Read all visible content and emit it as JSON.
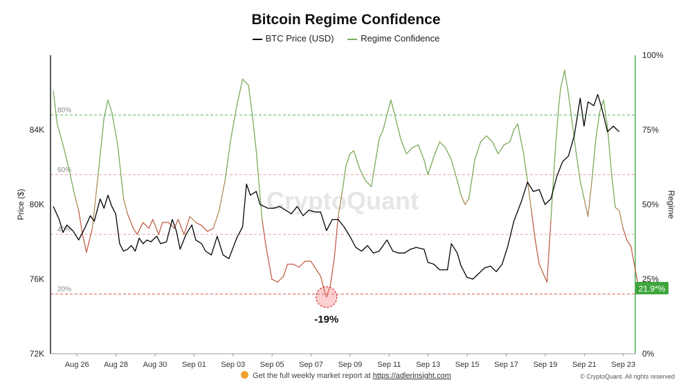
{
  "chart_data": {
    "type": "line",
    "title": "Bitcoin Regime Confidence",
    "ylabel_left": "Price ($)",
    "ylabel_right": "Regime",
    "ylim_left": [
      72000,
      88000
    ],
    "ylim_right": [
      0,
      100
    ],
    "left_ticks": [
      "72K",
      "76K",
      "80K",
      "84K"
    ],
    "right_ticks": [
      "0%",
      "25%",
      "50%",
      "75%",
      "100%"
    ],
    "x_ticks": [
      "Aug 26",
      "Aug 28",
      "Aug 30",
      "Sep 01",
      "Sep 03",
      "Sep 05",
      "Sep 07",
      "Sep 09",
      "Sep 11",
      "Sep 13",
      "Sep 15",
      "Sep 17",
      "Sep 19",
      "Sep 21",
      "Sep 23"
    ],
    "xlim_days": [
      "Aug 25",
      "Sep 25"
    ],
    "reference_lines": [
      {
        "label": "80%",
        "value": 80,
        "color": "#5cb85c"
      },
      {
        "label": "60%",
        "value": 60,
        "color": "#e8a0a0"
      },
      {
        "label": "40%",
        "value": 40,
        "color": "#e8a0a0"
      },
      {
        "label": "20%",
        "value": 20,
        "color": "#e05050"
      }
    ],
    "series": [
      {
        "name": "BTC Price (USD)",
        "color": "#000000",
        "axis": "left",
        "points": [
          [
            0.0,
            79900
          ],
          [
            0.3,
            79200
          ],
          [
            0.5,
            78500
          ],
          [
            0.7,
            78900
          ],
          [
            1.0,
            78600
          ],
          [
            1.3,
            78100
          ],
          [
            1.6,
            78700
          ],
          [
            1.9,
            79400
          ],
          [
            2.1,
            79100
          ],
          [
            2.4,
            80300
          ],
          [
            2.6,
            79800
          ],
          [
            2.8,
            80500
          ],
          [
            3.0,
            79900
          ],
          [
            3.2,
            79500
          ],
          [
            3.4,
            77900
          ],
          [
            3.6,
            77500
          ],
          [
            3.8,
            77600
          ],
          [
            4.0,
            77800
          ],
          [
            4.2,
            77500
          ],
          [
            4.4,
            78200
          ],
          [
            4.6,
            77900
          ],
          [
            4.8,
            78100
          ],
          [
            5.0,
            78000
          ],
          [
            5.3,
            78300
          ],
          [
            5.5,
            77900
          ],
          [
            5.8,
            78000
          ],
          [
            6.1,
            79200
          ],
          [
            6.3,
            78600
          ],
          [
            6.5,
            77600
          ],
          [
            6.8,
            78400
          ],
          [
            7.1,
            78900
          ],
          [
            7.3,
            78100
          ],
          [
            7.6,
            77900
          ],
          [
            7.8,
            77500
          ],
          [
            8.1,
            77300
          ],
          [
            8.4,
            78300
          ],
          [
            8.7,
            77300
          ],
          [
            9.0,
            77100
          ],
          [
            9.4,
            78200
          ],
          [
            9.7,
            78800
          ],
          [
            9.9,
            81100
          ],
          [
            10.1,
            80500
          ],
          [
            10.4,
            80700
          ],
          [
            10.6,
            80000
          ],
          [
            10.8,
            79900
          ],
          [
            11.0,
            79800
          ],
          [
            11.3,
            79800
          ],
          [
            11.6,
            79900
          ],
          [
            11.9,
            79700
          ],
          [
            12.2,
            79500
          ],
          [
            12.5,
            79900
          ],
          [
            12.8,
            79400
          ],
          [
            13.1,
            79700
          ],
          [
            13.4,
            79600
          ],
          [
            13.7,
            79600
          ],
          [
            14.0,
            78600
          ],
          [
            14.3,
            79200
          ],
          [
            14.6,
            79200
          ],
          [
            14.9,
            78800
          ],
          [
            15.2,
            78300
          ],
          [
            15.5,
            77700
          ],
          [
            15.8,
            77500
          ],
          [
            16.1,
            77800
          ],
          [
            16.4,
            77400
          ],
          [
            16.7,
            77500
          ],
          [
            17.1,
            78100
          ],
          [
            17.4,
            77500
          ],
          [
            17.7,
            77400
          ],
          [
            18.0,
            77400
          ],
          [
            18.3,
            77600
          ],
          [
            18.6,
            77700
          ],
          [
            19.0,
            77600
          ],
          [
            19.2,
            76900
          ],
          [
            19.5,
            76800
          ],
          [
            19.8,
            76500
          ],
          [
            20.2,
            76500
          ],
          [
            20.4,
            77900
          ],
          [
            20.7,
            77400
          ],
          [
            20.9,
            76700
          ],
          [
            21.2,
            76100
          ],
          [
            21.5,
            76000
          ],
          [
            21.8,
            76300
          ],
          [
            22.1,
            76600
          ],
          [
            22.4,
            76700
          ],
          [
            22.7,
            76400
          ],
          [
            23.0,
            76800
          ],
          [
            23.3,
            77800
          ],
          [
            23.6,
            79100
          ],
          [
            24.0,
            80200
          ],
          [
            24.3,
            81200
          ],
          [
            24.6,
            80700
          ],
          [
            24.9,
            80800
          ],
          [
            25.2,
            80000
          ],
          [
            25.5,
            80300
          ],
          [
            25.8,
            81500
          ],
          [
            26.1,
            82300
          ],
          [
            26.4,
            82600
          ],
          [
            26.7,
            83700
          ],
          [
            27.0,
            85700
          ],
          [
            27.2,
            84200
          ],
          [
            27.4,
            85500
          ],
          [
            27.7,
            85300
          ],
          [
            27.9,
            85900
          ],
          [
            28.1,
            85200
          ],
          [
            28.4,
            83900
          ],
          [
            28.7,
            84200
          ],
          [
            29.0,
            83900
          ]
        ]
      },
      {
        "name": "Regime Confidence",
        "color": "#7aaa5a",
        "axis": "right",
        "points": [
          [
            0.0,
            88
          ],
          [
            0.2,
            77
          ],
          [
            0.5,
            70
          ],
          [
            0.8,
            62
          ],
          [
            1.1,
            53
          ],
          [
            1.3,
            48
          ],
          [
            1.5,
            40
          ],
          [
            1.7,
            34
          ],
          [
            2.0,
            42
          ],
          [
            2.3,
            60
          ],
          [
            2.6,
            79
          ],
          [
            2.8,
            85
          ],
          [
            3.0,
            81
          ],
          [
            3.3,
            70
          ],
          [
            3.6,
            52
          ],
          [
            3.8,
            47
          ],
          [
            4.1,
            42
          ],
          [
            4.3,
            40
          ],
          [
            4.6,
            44
          ],
          [
            4.9,
            42
          ],
          [
            5.1,
            45
          ],
          [
            5.4,
            40
          ],
          [
            5.6,
            44
          ],
          [
            5.9,
            44
          ],
          [
            6.2,
            42
          ],
          [
            6.4,
            45
          ],
          [
            6.7,
            40
          ],
          [
            7.0,
            46
          ],
          [
            7.3,
            44
          ],
          [
            7.6,
            43
          ],
          [
            7.9,
            41
          ],
          [
            8.2,
            42
          ],
          [
            8.5,
            48
          ],
          [
            8.8,
            58
          ],
          [
            9.1,
            72
          ],
          [
            9.4,
            83
          ],
          [
            9.7,
            92
          ],
          [
            10.0,
            90
          ],
          [
            10.2,
            80
          ],
          [
            10.4,
            68
          ],
          [
            10.7,
            45
          ],
          [
            10.9,
            36
          ],
          [
            11.2,
            25
          ],
          [
            11.5,
            24
          ],
          [
            11.8,
            26
          ],
          [
            12.0,
            30
          ],
          [
            12.3,
            30
          ],
          [
            12.6,
            29
          ],
          [
            12.9,
            31
          ],
          [
            13.2,
            31
          ],
          [
            13.5,
            28
          ],
          [
            13.7,
            26
          ],
          [
            13.9,
            21
          ],
          [
            14.0,
            19
          ],
          [
            14.2,
            23
          ],
          [
            14.4,
            32
          ],
          [
            14.6,
            46
          ],
          [
            14.8,
            54
          ],
          [
            15.0,
            63
          ],
          [
            15.2,
            67
          ],
          [
            15.4,
            68
          ],
          [
            15.7,
            62
          ],
          [
            16.0,
            58
          ],
          [
            16.3,
            56
          ],
          [
            16.5,
            64
          ],
          [
            16.7,
            72
          ],
          [
            16.9,
            75
          ],
          [
            17.1,
            80
          ],
          [
            17.3,
            85
          ],
          [
            17.5,
            80
          ],
          [
            17.8,
            72
          ],
          [
            18.1,
            67
          ],
          [
            18.4,
            69
          ],
          [
            18.7,
            70
          ],
          [
            19.0,
            65
          ],
          [
            19.2,
            60
          ],
          [
            19.5,
            66
          ],
          [
            19.8,
            71
          ],
          [
            20.1,
            69
          ],
          [
            20.4,
            65
          ],
          [
            20.7,
            58
          ],
          [
            20.9,
            53
          ],
          [
            21.1,
            50
          ],
          [
            21.3,
            52
          ],
          [
            21.6,
            65
          ],
          [
            21.9,
            71
          ],
          [
            22.2,
            73
          ],
          [
            22.5,
            71
          ],
          [
            22.8,
            67
          ],
          [
            23.1,
            70
          ],
          [
            23.4,
            71
          ],
          [
            23.6,
            75
          ],
          [
            23.8,
            77
          ],
          [
            24.1,
            67
          ],
          [
            24.3,
            58
          ],
          [
            24.5,
            48
          ],
          [
            24.7,
            38
          ],
          [
            24.9,
            30
          ],
          [
            25.1,
            27
          ],
          [
            25.3,
            24
          ],
          [
            25.5,
            45
          ],
          [
            25.7,
            66
          ],
          [
            25.9,
            83
          ],
          [
            26.0,
            89
          ],
          [
            26.2,
            95
          ],
          [
            26.4,
            87
          ],
          [
            26.6,
            77
          ],
          [
            26.8,
            67
          ],
          [
            27.0,
            58
          ],
          [
            27.2,
            52
          ],
          [
            27.4,
            46
          ],
          [
            27.6,
            58
          ],
          [
            27.8,
            72
          ],
          [
            28.0,
            81
          ],
          [
            28.2,
            85
          ],
          [
            28.4,
            76
          ],
          [
            28.6,
            61
          ],
          [
            28.8,
            49
          ],
          [
            29.0,
            48
          ],
          [
            29.2,
            42
          ],
          [
            29.4,
            38
          ],
          [
            29.6,
            36
          ],
          [
            29.8,
            29
          ],
          [
            30.0,
            22
          ]
        ]
      }
    ],
    "annotations": [
      {
        "text": "-19%",
        "x": 14.0,
        "value": 19,
        "color": "#d03030"
      }
    ],
    "last_value_label": "21.9*%",
    "watermark": "CryptoQuant",
    "grid": false,
    "legend_position": "top-center"
  },
  "footer": {
    "text": "Get the full weekly market report at",
    "link_text": "https://adlerinsight.com",
    "copyright": "© CryptoQuant. All rights reserved"
  }
}
